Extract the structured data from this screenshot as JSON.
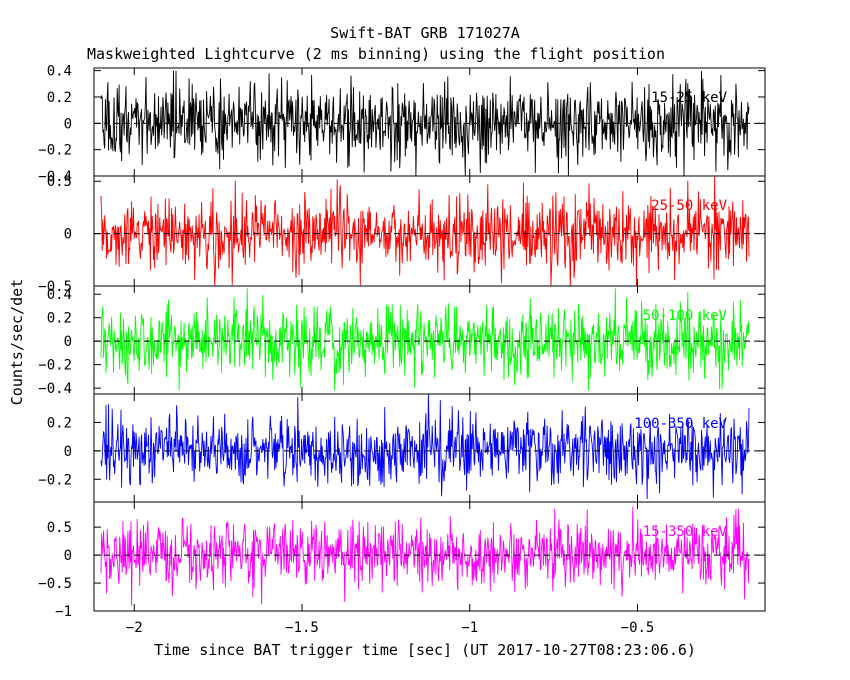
{
  "chart_data": {
    "type": "line",
    "title": "Swift-BAT GRB 171027A",
    "subtitle": "Maskweighted Lightcurve (2 ms binning) using the flight position",
    "xlabel": "Time since BAT trigger time [sec] (UT 2017-10-27T08:23:06.6)",
    "ylabel": "Counts/sec/det",
    "xlim": [
      -2.12,
      -0.12
    ],
    "x_ticks": [
      -2,
      -1.5,
      -1,
      -0.5
    ],
    "x_tick_labels": [
      "−2",
      "−1.5",
      "−1",
      "−0.5"
    ],
    "binning_sec": 0.002,
    "grid": false,
    "panels": [
      {
        "name": "15-25 keV",
        "color": "#000000",
        "ylim": [
          -0.4,
          0.42
        ],
        "y_ticks": [
          -0.4,
          -0.2,
          0,
          0.2,
          0.4
        ],
        "y_tick_labels": [
          "−0.4",
          "−0.2",
          "0",
          "0.2",
          "0.4"
        ],
        "amplitude": 0.15,
        "series_min": -0.4,
        "series_max": 0.4
      },
      {
        "name": "25-50 keV",
        "color": "#ff0000",
        "ylim": [
          -0.5,
          0.55
        ],
        "y_ticks": [
          -0.5,
          0,
          0.5
        ],
        "y_tick_labels": [
          "−0.5",
          "0",
          "0.5"
        ],
        "amplitude": 0.18,
        "series_min": -0.5,
        "series_max": 0.55
      },
      {
        "name": "50-100 keV",
        "color": "#00ff00",
        "ylim": [
          -0.45,
          0.47
        ],
        "y_ticks": [
          -0.4,
          -0.2,
          0,
          0.2,
          0.4
        ],
        "y_tick_labels": [
          "−0.4",
          "−0.2",
          "0",
          "0.2",
          "0.4"
        ],
        "amplitude": 0.15,
        "series_min": -0.42,
        "series_max": 0.45
      },
      {
        "name": "100-350 keV",
        "color": "#0000ff",
        "ylim": [
          -0.36,
          0.4
        ],
        "y_ticks": [
          -0.2,
          0,
          0.2
        ],
        "y_tick_labels": [
          "−0.2",
          "0",
          "0.2"
        ],
        "amplitude": 0.12,
        "series_min": -0.35,
        "series_max": 0.4
      },
      {
        "name": "15-350 keV",
        "color": "#ff00ff",
        "ylim": [
          -1.0,
          0.95
        ],
        "y_ticks": [
          -1,
          -0.5,
          0,
          0.5
        ],
        "y_tick_labels": [
          "−1",
          "−0.5",
          "0",
          "0.5"
        ],
        "amplitude": 0.3,
        "series_min": -1.0,
        "series_max": 0.9
      }
    ]
  }
}
